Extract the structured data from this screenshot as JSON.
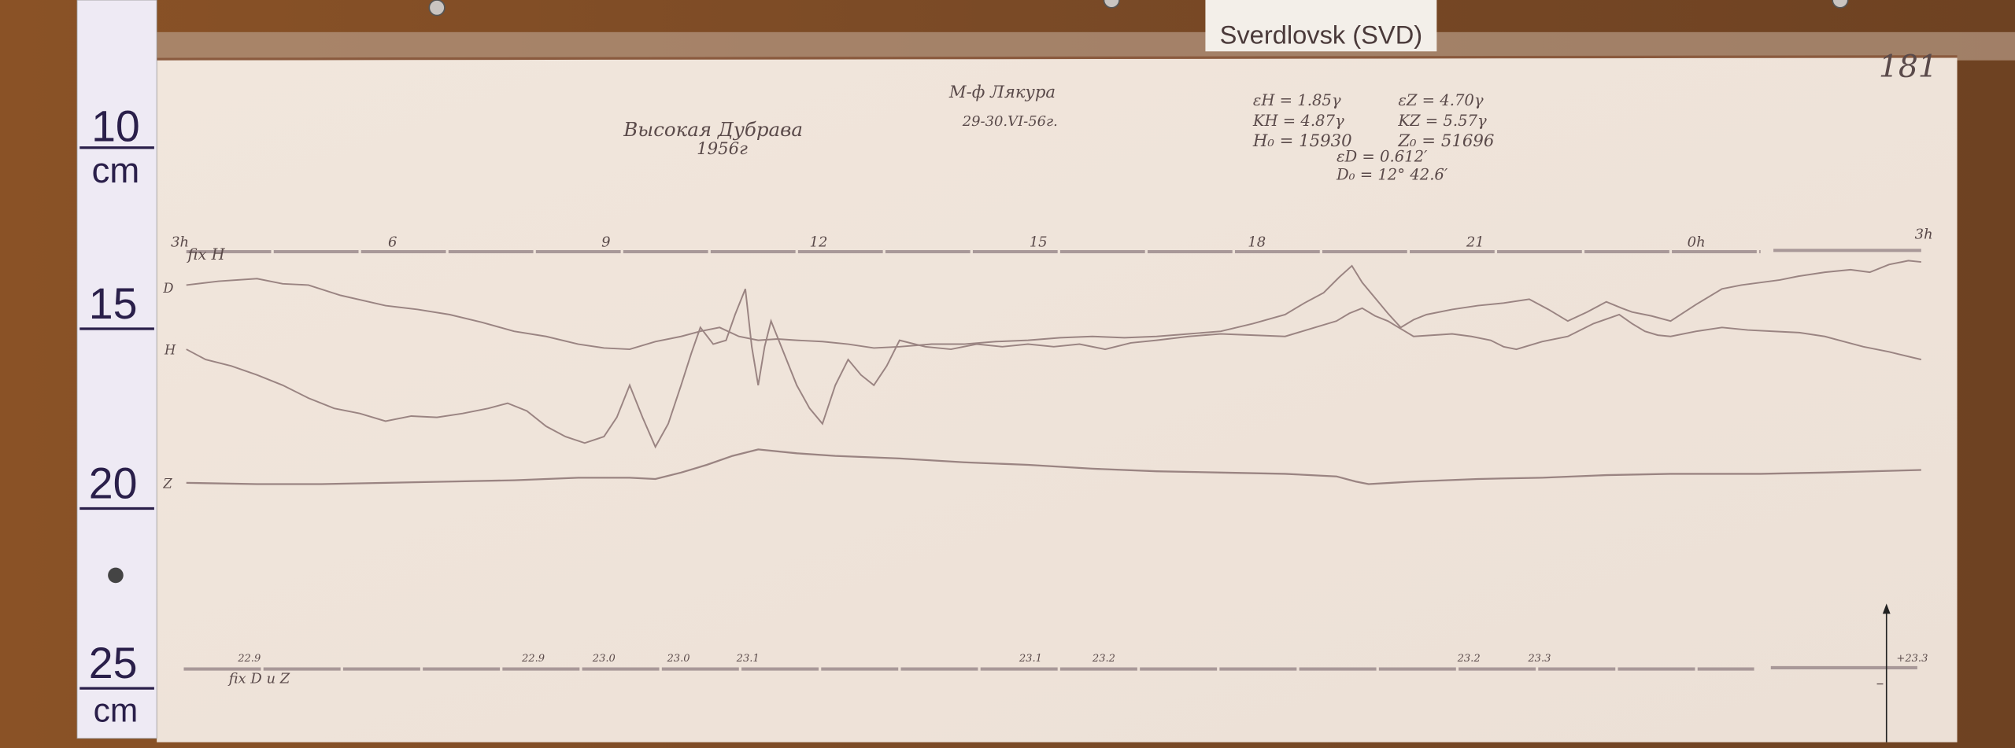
{
  "station_label": "Sverdlovsk (SVD)",
  "sheet_number": "181",
  "title": "Высокая Дубрава",
  "year": "1956г",
  "observer": "М-ф Лякура",
  "date": "29-30.VI-56г.",
  "constants": {
    "eH": "εH = 1.85γ",
    "eZ": "εZ = 4.70γ",
    "KH": "KH = 4.87γ",
    "KZ": "KZ = 5.57γ",
    "H0": "H₀ = 15930",
    "Z0": "Z₀ = 51696",
    "eD": "εD = 0.612′",
    "D0": "D₀ = 12° 42.6′"
  },
  "ruler": {
    "marks": [
      "10",
      "cm",
      "15",
      "20",
      "25",
      "cm"
    ]
  },
  "hour_labels": [
    "3h",
    "6",
    "9",
    "12",
    "15",
    "18",
    "21",
    "0h",
    "3h"
  ],
  "baseline_top_label": "fix H",
  "baseline_bottom_label": "fix D u Z",
  "trace_labels": {
    "D": "D",
    "H": "H",
    "Z": "Z"
  },
  "temperature_labels": [
    "22.9",
    "22.9",
    "23.0",
    "23.0",
    "23.1",
    "23.1",
    "23.2",
    "23.2",
    "23.3",
    "+23.3"
  ],
  "minus_label": "−",
  "colors": {
    "wood": "#7a4a24",
    "paper": "#efe3d8",
    "trace": "#9a8482",
    "ruler": "#eeeaf4"
  }
}
